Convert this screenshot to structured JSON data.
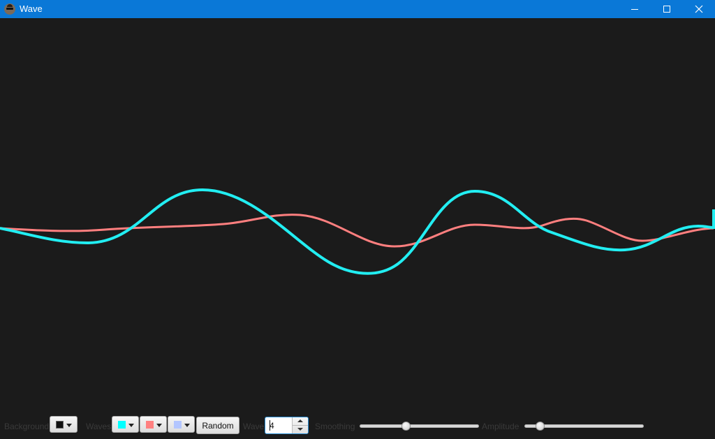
{
  "window": {
    "title": "Wave",
    "app_icon": "avatar-icon",
    "controls": [
      "minimize-icon",
      "maximize-icon",
      "close-icon"
    ]
  },
  "canvas": {
    "background_color": "#1b1b1b",
    "waves": [
      {
        "color": "#ff7f7f"
      },
      {
        "color": "#22eef2"
      }
    ]
  },
  "toolbar": {
    "background_label": "Background",
    "background_color": "#111111",
    "waves_label": "Waves",
    "wave_colors": [
      "#00ffff",
      "#ff8080",
      "#b3c6ff"
    ],
    "random_label": "Random",
    "wave_count_label": "Wave",
    "wave_count": "4",
    "smoothing_label": "Smoothing",
    "smoothing_value": 0.38,
    "amplitude_label": "Amplitude",
    "amplitude_value": 0.1
  }
}
